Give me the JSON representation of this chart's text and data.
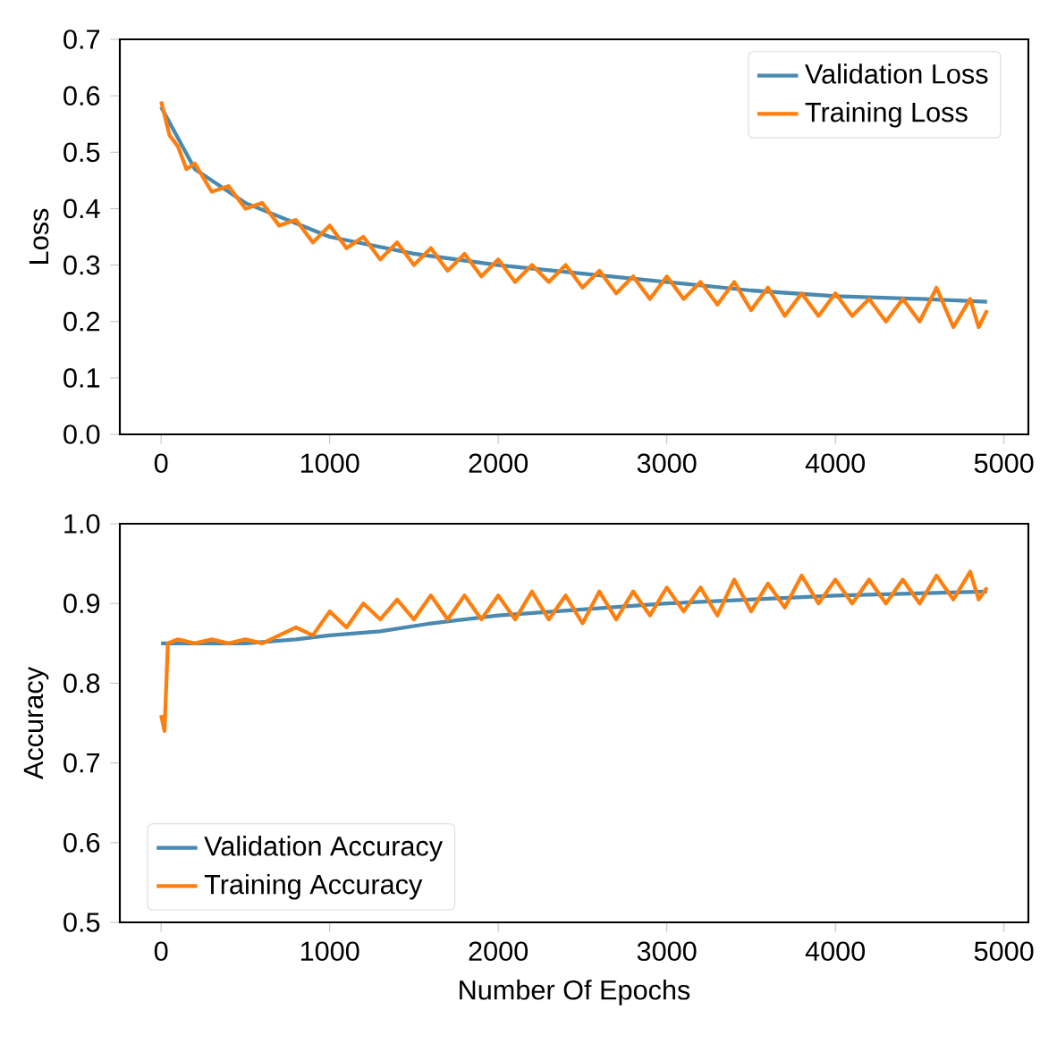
{
  "chart_data": [
    {
      "type": "line",
      "ylabel": "Loss",
      "xlim": [
        -245,
        5145
      ],
      "ylim": [
        0,
        0.7
      ],
      "xticks": [
        0,
        1000,
        2000,
        3000,
        4000,
        5000
      ],
      "yticks": [
        {
          "value": 0,
          "label": "0.0"
        },
        0.1,
        0.2,
        0.3,
        0.4,
        0.5,
        0.6,
        0.7
      ],
      "legend": "top right",
      "grid": false,
      "series": [
        {
          "name": "Validation Loss",
          "color": "#4a89b0",
          "x": [
            0,
            200,
            500,
            1000,
            1500,
            2000,
            2500,
            3000,
            3500,
            4000,
            4500,
            4900
          ],
          "values": [
            0.58,
            0.47,
            0.41,
            0.35,
            0.32,
            0.3,
            0.285,
            0.27,
            0.255,
            0.245,
            0.24,
            0.235
          ]
        },
        {
          "name": "Training Loss",
          "color": "#ff7f0e",
          "x": [
            0,
            50,
            100,
            150,
            200,
            300,
            400,
            500,
            600,
            700,
            800,
            900,
            1000,
            1100,
            1200,
            1300,
            1400,
            1500,
            1600,
            1700,
            1800,
            1900,
            2000,
            2100,
            2200,
            2300,
            2400,
            2500,
            2600,
            2700,
            2800,
            2900,
            3000,
            3100,
            3200,
            3300,
            3400,
            3500,
            3600,
            3700,
            3800,
            3900,
            4000,
            4100,
            4200,
            4300,
            4400,
            4500,
            4600,
            4700,
            4800,
            4850,
            4900
          ],
          "values": [
            0.59,
            0.53,
            0.51,
            0.47,
            0.48,
            0.43,
            0.44,
            0.4,
            0.41,
            0.37,
            0.38,
            0.34,
            0.37,
            0.33,
            0.35,
            0.31,
            0.34,
            0.3,
            0.33,
            0.29,
            0.32,
            0.28,
            0.31,
            0.27,
            0.3,
            0.27,
            0.3,
            0.26,
            0.29,
            0.25,
            0.28,
            0.24,
            0.28,
            0.24,
            0.27,
            0.23,
            0.27,
            0.22,
            0.26,
            0.21,
            0.25,
            0.21,
            0.25,
            0.21,
            0.24,
            0.2,
            0.24,
            0.2,
            0.26,
            0.19,
            0.24,
            0.19,
            0.22
          ]
        }
      ]
    },
    {
      "type": "line",
      "ylabel": "Accuracy",
      "xlabel": "Number Of Epochs",
      "xlim": [
        -245,
        5145
      ],
      "ylim": [
        0.5,
        1.0
      ],
      "xticks": [
        0,
        1000,
        2000,
        3000,
        4000,
        5000
      ],
      "yticks": [
        0.5,
        0.6,
        0.7,
        0.8,
        0.9,
        {
          "value": 1.0,
          "label": "1.0"
        }
      ],
      "legend": "bottom left",
      "grid": false,
      "series": [
        {
          "name": "Validation Accuracy",
          "color": "#4a89b0",
          "x": [
            0,
            100,
            500,
            800,
            1000,
            1300,
            1600,
            2000,
            3000,
            4000,
            4900
          ],
          "values": [
            0.85,
            0.85,
            0.85,
            0.855,
            0.86,
            0.865,
            0.875,
            0.885,
            0.9,
            0.91,
            0.915
          ]
        },
        {
          "name": "Training Accuracy",
          "color": "#ff7f0e",
          "x": [
            0,
            20,
            40,
            100,
            200,
            300,
            400,
            500,
            600,
            700,
            800,
            900,
            1000,
            1100,
            1200,
            1300,
            1400,
            1500,
            1600,
            1700,
            1800,
            1900,
            2000,
            2100,
            2200,
            2300,
            2400,
            2500,
            2600,
            2700,
            2800,
            2900,
            3000,
            3100,
            3200,
            3300,
            3400,
            3500,
            3600,
            3700,
            3800,
            3900,
            4000,
            4100,
            4200,
            4300,
            4400,
            4500,
            4600,
            4700,
            4800,
            4850,
            4900
          ],
          "values": [
            0.76,
            0.74,
            0.85,
            0.855,
            0.85,
            0.855,
            0.85,
            0.855,
            0.85,
            0.86,
            0.87,
            0.86,
            0.89,
            0.87,
            0.9,
            0.88,
            0.905,
            0.88,
            0.91,
            0.88,
            0.91,
            0.88,
            0.91,
            0.88,
            0.915,
            0.88,
            0.91,
            0.875,
            0.915,
            0.88,
            0.915,
            0.885,
            0.92,
            0.89,
            0.92,
            0.885,
            0.93,
            0.89,
            0.925,
            0.895,
            0.935,
            0.9,
            0.93,
            0.9,
            0.93,
            0.9,
            0.93,
            0.9,
            0.935,
            0.905,
            0.94,
            0.905,
            0.92
          ]
        }
      ]
    }
  ]
}
